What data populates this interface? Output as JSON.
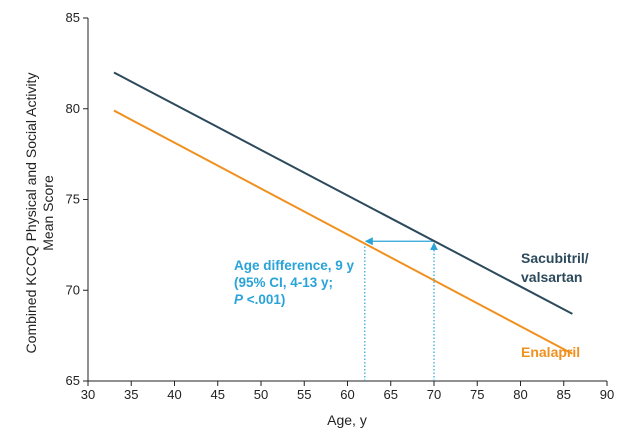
{
  "chart_data": {
    "type": "line",
    "xlabel": "Age, y",
    "ylabel_lines": [
      "Combined KCCQ Physical and Social Activity",
      "Mean Score"
    ],
    "xlim": [
      30,
      90
    ],
    "ylim": [
      65,
      85
    ],
    "xticks": [
      30,
      35,
      40,
      45,
      50,
      55,
      60,
      65,
      70,
      75,
      80,
      85,
      90
    ],
    "yticks": [
      65,
      70,
      75,
      80,
      85
    ],
    "grid": false,
    "series": [
      {
        "name": "Sacubitril/valsartan",
        "label_lines": [
          "Sacubitril/",
          "valsartan"
        ],
        "color": "#2c4a5c",
        "x": [
          33,
          86
        ],
        "y": [
          82.0,
          68.7
        ]
      },
      {
        "name": "Enalapril",
        "label_lines": [
          "Enalapril"
        ],
        "color": "#f0901e",
        "x": [
          33,
          86
        ],
        "y": [
          79.9,
          66.5
        ]
      }
    ],
    "annotation": {
      "lines": [
        "Age difference, 9 y",
        "(95% CI, 4-13 y;",
        "P <.001)"
      ],
      "color": "#29a3d8",
      "from_age": 70,
      "to_age": 62,
      "score": 72.7
    }
  }
}
